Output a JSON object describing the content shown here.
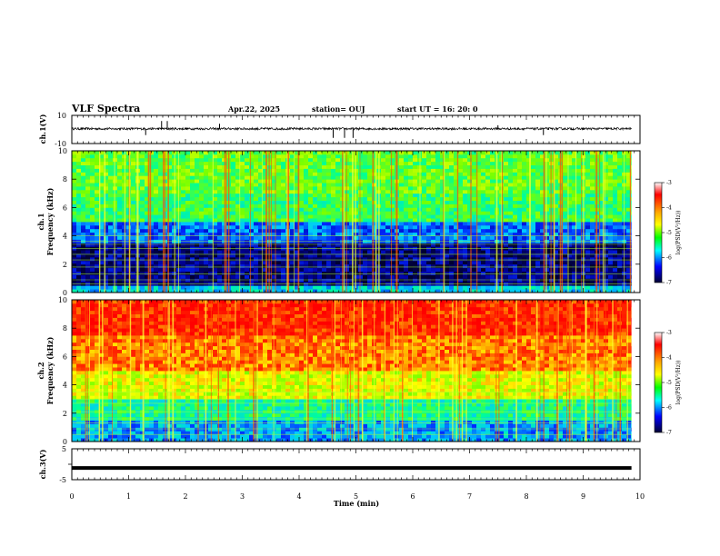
{
  "header": {
    "title": "VLF Spectra",
    "date": "Apr.22, 2025",
    "station": "station= OUJ",
    "start": "start  UT =   16: 20: 0"
  },
  "colorbar": {
    "label": "log(PSD(V²/Hz))",
    "ticks": [
      "-3",
      "-4",
      "-5",
      "-6",
      "-7"
    ],
    "colors": [
      "#ff0000",
      "#ffaa00",
      "#ffff00",
      "#00ff00",
      "#00ffff",
      "#0000ff",
      "#000044"
    ]
  },
  "chart_data": [
    {
      "type": "line",
      "name": "ch1-waveform",
      "ylabel": "ch.1(V)",
      "ylim": [
        -10,
        10
      ],
      "ytick_labels": [
        "10",
        "-10"
      ],
      "xlim": [
        0,
        10
      ],
      "baseline_mean": 0.5,
      "spikes": [
        {
          "x": 1.3,
          "y": -4
        },
        {
          "x": 1.58,
          "y": 6
        },
        {
          "x": 1.68,
          "y": 6
        },
        {
          "x": 2.6,
          "y": 4
        },
        {
          "x": 4.6,
          "y": -6
        },
        {
          "x": 4.8,
          "y": -6
        },
        {
          "x": 4.95,
          "y": -6
        },
        {
          "x": 7.5,
          "y": 3
        },
        {
          "x": 8.3,
          "y": -4
        }
      ]
    },
    {
      "type": "heatmap",
      "name": "ch1-spectrogram",
      "ylabel": "ch.1\nFrequency  (kHz)",
      "ylim": [
        0,
        10
      ],
      "ytick_labels": [
        "0",
        "2",
        "4",
        "6",
        "8",
        "10"
      ],
      "xlim": [
        0,
        10
      ],
      "colorbar_range": [
        -7,
        -3
      ],
      "bands": [
        {
          "f_from": 0,
          "f_to": 0.5,
          "level": -5.6
        },
        {
          "f_from": 0.5,
          "f_to": 3.5,
          "level": -6.7
        },
        {
          "f_from": 3.5,
          "f_to": 5,
          "level": -6.0
        },
        {
          "f_from": 5,
          "f_to": 7,
          "level": -5.0
        },
        {
          "f_from": 7,
          "f_to": 10,
          "level": -4.8
        }
      ],
      "line_freqs_khz": [
        0.6,
        0.9,
        1.3,
        1.8,
        2.3,
        2.7,
        3.1,
        3.4,
        3.6,
        4.0
      ]
    },
    {
      "type": "heatmap",
      "name": "ch2-spectrogram",
      "ylabel": "ch.2\nFrequency  (kHz)",
      "ylim": [
        0,
        10
      ],
      "ytick_labels": [
        "0",
        "2",
        "4",
        "6",
        "8",
        "10"
      ],
      "xlim": [
        0,
        10
      ],
      "colorbar_range": [
        -7,
        -3
      ],
      "bands": [
        {
          "f_from": 0,
          "f_to": 1.5,
          "level": -5.8
        },
        {
          "f_from": 1.5,
          "f_to": 3,
          "level": -5.2
        },
        {
          "f_from": 3,
          "f_to": 5,
          "level": -4.3
        },
        {
          "f_from": 5,
          "f_to": 7.5,
          "level": -3.7
        },
        {
          "f_from": 7.5,
          "f_to": 10,
          "level": -3.3
        }
      ],
      "line_freqs_khz": [
        0.5,
        0.9,
        1.3,
        1.6,
        2.1,
        2.7,
        3.0,
        3.5
      ]
    },
    {
      "type": "line",
      "name": "ch3-waveform",
      "ylabel": "ch.3(V)",
      "ylim": [
        -5,
        5
      ],
      "ytick_labels": [
        "5",
        "0",
        "-5"
      ],
      "xlim": [
        0,
        10
      ],
      "x_end": 9.85,
      "constant_value": -1.2
    }
  ],
  "xaxis": {
    "label": "Time  (min)",
    "tick_labels": [
      "0",
      "1",
      "2",
      "3",
      "4",
      "5",
      "6",
      "7",
      "8",
      "9",
      "10"
    ]
  }
}
